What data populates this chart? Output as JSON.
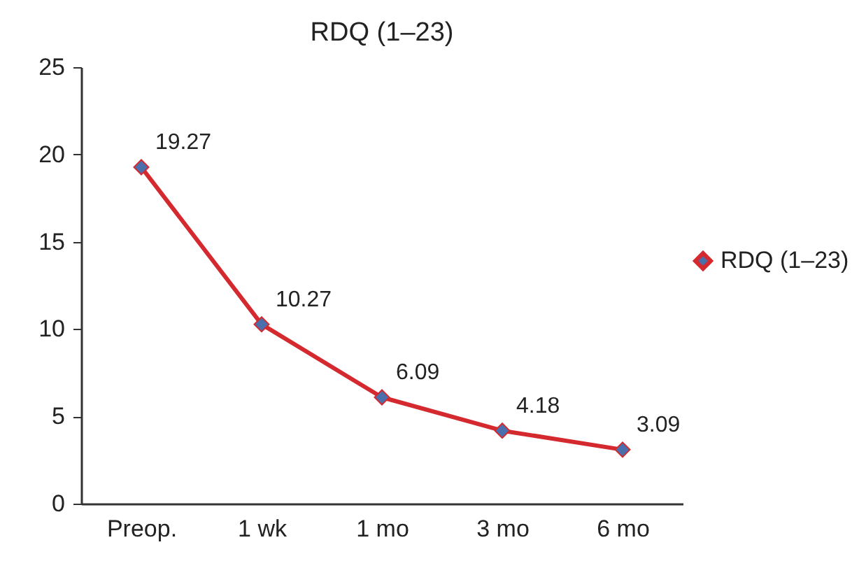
{
  "chart_data": {
    "type": "line",
    "title": "RDQ (1–23)",
    "categories": [
      "Preop.",
      "1 wk",
      "1 mo",
      "3 mo",
      "6 mo"
    ],
    "series": [
      {
        "name": "RDQ (1–23)",
        "color": "#d42a2f",
        "values": [
          19.27,
          10.27,
          6.09,
          4.18,
          3.09
        ]
      }
    ],
    "ylim": [
      0,
      25
    ],
    "yticks": [
      0,
      5,
      10,
      15,
      20,
      25
    ],
    "data_labels": true,
    "marker": "diamond",
    "line_style": "solid",
    "legend": "right",
    "grid": false
  }
}
